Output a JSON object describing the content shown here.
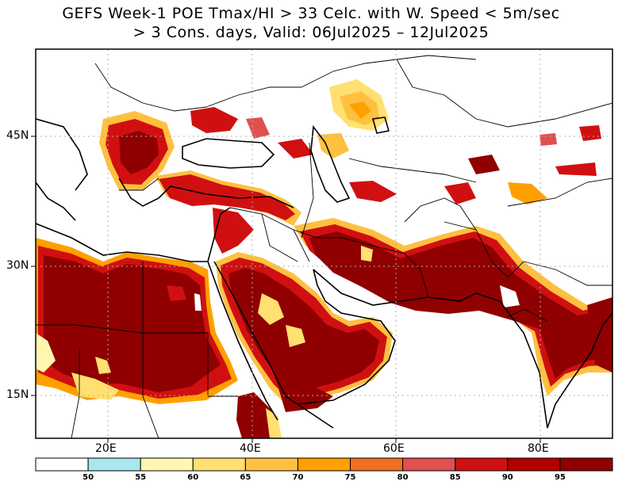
{
  "title": {
    "line1": "GEFS Week-1 POE Tmax/HI > 33 Celc. with W. Speed < 5m/sec",
    "line2": "> 3 Cons. days, Valid: 06Jul2025 – 12Jul2025"
  },
  "axes": {
    "x_ticks": [
      "20E",
      "40E",
      "60E",
      "80E"
    ],
    "y_ticks": [
      "45N",
      "30N",
      "15N"
    ]
  },
  "colorbar": {
    "labels": [
      "50",
      "55",
      "60",
      "65",
      "70",
      "75",
      "80",
      "85",
      "90",
      "95"
    ],
    "colors": [
      "#ffffff",
      "#a8e6f0",
      "#fff7b0",
      "#ffe070",
      "#ffc040",
      "#ffa000",
      "#f07020",
      "#e05050",
      "#d01010",
      "#b00000",
      "#900000"
    ]
  },
  "palette": {
    "background": "#ffffff",
    "grid": "#b0b0b0",
    "border": "#000000"
  }
}
